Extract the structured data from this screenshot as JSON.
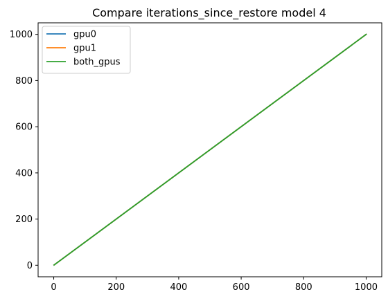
{
  "chart_data": {
    "type": "line",
    "title": "Compare iterations_since_restore model 4",
    "xlabel": "",
    "ylabel": "",
    "xlim": [
      -50,
      1050
    ],
    "ylim": [
      -50,
      1050
    ],
    "xticks": [
      0,
      200,
      400,
      600,
      800,
      1000
    ],
    "yticks": [
      0,
      200,
      400,
      600,
      800,
      1000
    ],
    "xtick_labels": [
      "0",
      "200",
      "400",
      "600",
      "800",
      "1000"
    ],
    "ytick_labels": [
      "0",
      "200",
      "400",
      "600",
      "800",
      "1000"
    ],
    "grid": false,
    "legend_position": "upper-left",
    "series": [
      {
        "name": "gpu0",
        "color": "#1f77b4",
        "x": [
          1,
          1000
        ],
        "y": [
          1,
          1000
        ]
      },
      {
        "name": "gpu1",
        "color": "#ff7f0e",
        "x": [
          1,
          1000
        ],
        "y": [
          1,
          1000
        ]
      },
      {
        "name": "both_gpus",
        "color": "#2ca02c",
        "x": [
          1,
          1000
        ],
        "y": [
          1,
          1000
        ]
      }
    ]
  }
}
